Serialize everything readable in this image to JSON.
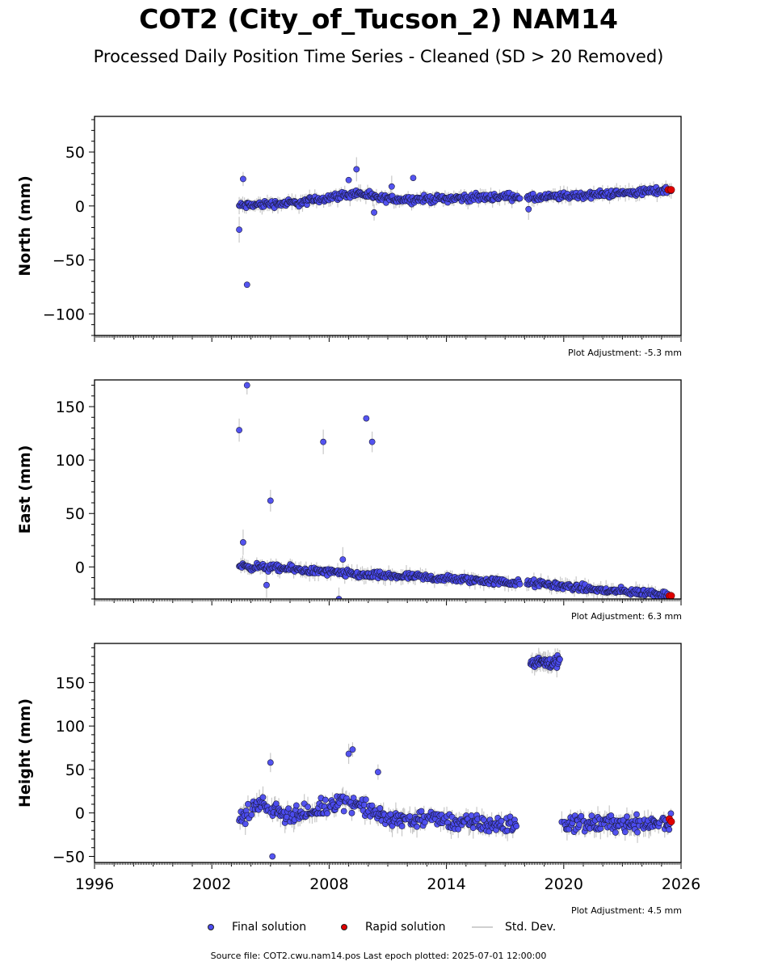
{
  "header": {
    "title": "COT2 (City_of_Tucson_2) NAM14",
    "subtitle": "Processed Daily Position Time Series - Cleaned (SD > 20 Removed)"
  },
  "chart_data": [
    {
      "type": "scatter",
      "ylabel": "North (mm)",
      "xlim": [
        1996,
        2026
      ],
      "ylim": [
        -120,
        83
      ],
      "yticks": [
        50,
        0,
        -50,
        -100
      ],
      "yticklabels": [
        "50",
        "0",
        "−50",
        "−100"
      ],
      "adjustment": "Plot Adjustment: -5.3 mm",
      "trend": [
        {
          "x": 2003.4,
          "y": 0
        },
        {
          "x": 2005.0,
          "y": 2
        },
        {
          "x": 2006.5,
          "y": 3
        },
        {
          "x": 2008.0,
          "y": 8
        },
        {
          "x": 2009.5,
          "y": 12
        },
        {
          "x": 2010.5,
          "y": 7
        },
        {
          "x": 2012.0,
          "y": 6
        },
        {
          "x": 2014.0,
          "y": 7
        },
        {
          "x": 2016.0,
          "y": 8
        },
        {
          "x": 2017.6,
          "y": 9
        },
        {
          "x": 2018.2,
          "y": 7
        },
        {
          "x": 2020.0,
          "y": 9
        },
        {
          "x": 2022.0,
          "y": 11
        },
        {
          "x": 2024.0,
          "y": 13
        },
        {
          "x": 2025.5,
          "y": 15
        }
      ],
      "gaps": [
        [
          2017.8,
          2018.1
        ]
      ],
      "outliers": [
        {
          "x": 2003.4,
          "y": -22
        },
        {
          "x": 2003.6,
          "y": 25
        },
        {
          "x": 2003.8,
          "y": -73
        },
        {
          "x": 2009.4,
          "y": 34
        },
        {
          "x": 2009.0,
          "y": 24
        },
        {
          "x": 2010.3,
          "y": -6
        },
        {
          "x": 2012.3,
          "y": 26
        },
        {
          "x": 2011.2,
          "y": 18
        },
        {
          "x": 2018.2,
          "y": -3
        }
      ],
      "rapid": [
        {
          "x": 2025.35,
          "y": 15
        },
        {
          "x": 2025.45,
          "y": 15
        },
        {
          "x": 2025.5,
          "y": 15
        }
      ],
      "spread": 5
    },
    {
      "type": "scatter",
      "ylabel": "East (mm)",
      "xlim": [
        1996,
        2026
      ],
      "ylim": [
        -30,
        175
      ],
      "yticks": [
        150,
        100,
        50,
        0
      ],
      "yticklabels": [
        "150",
        "100",
        "50",
        "0"
      ],
      "adjustment": "Plot Adjustment: 6.3 mm",
      "trend": [
        {
          "x": 2003.4,
          "y": 1
        },
        {
          "x": 2006.0,
          "y": -2
        },
        {
          "x": 2008.0,
          "y": -5
        },
        {
          "x": 2010.0,
          "y": -8
        },
        {
          "x": 2012.0,
          "y": -9
        },
        {
          "x": 2014.0,
          "y": -11
        },
        {
          "x": 2016.0,
          "y": -13
        },
        {
          "x": 2017.6,
          "y": -15
        },
        {
          "x": 2018.2,
          "y": -15
        },
        {
          "x": 2020.0,
          "y": -18
        },
        {
          "x": 2022.0,
          "y": -22
        },
        {
          "x": 2024.0,
          "y": -24
        },
        {
          "x": 2025.5,
          "y": -26
        }
      ],
      "gaps": [
        [
          2017.8,
          2018.1
        ]
      ],
      "outliers": [
        {
          "x": 2003.4,
          "y": 128
        },
        {
          "x": 2003.8,
          "y": 170
        },
        {
          "x": 2005.0,
          "y": 62
        },
        {
          "x": 2007.7,
          "y": 117
        },
        {
          "x": 2009.9,
          "y": 139
        },
        {
          "x": 2010.2,
          "y": 117
        },
        {
          "x": 2003.6,
          "y": 23
        },
        {
          "x": 2008.7,
          "y": 7
        },
        {
          "x": 2008.5,
          "y": -30
        },
        {
          "x": 2004.8,
          "y": -17
        }
      ],
      "rapid": [
        {
          "x": 2025.4,
          "y": -27
        },
        {
          "x": 2025.5,
          "y": -27
        }
      ],
      "spread": 5
    },
    {
      "type": "scatter",
      "ylabel": "Height (mm)",
      "xlim": [
        1996,
        2026
      ],
      "ylim": [
        -57,
        195
      ],
      "yticks": [
        150,
        100,
        50,
        0,
        -50
      ],
      "yticklabels": [
        "150",
        "100",
        "50",
        "0",
        "−50"
      ],
      "xticks": [
        1996,
        2002,
        2008,
        2014,
        2020,
        2026
      ],
      "xticklabels": [
        "1996",
        "2002",
        "2008",
        "2014",
        "2020",
        "2026"
      ],
      "adjustment": "Plot Adjustment: 4.5 mm",
      "trend": [
        {
          "x": 2003.4,
          "y": -5
        },
        {
          "x": 2004.5,
          "y": 10
        },
        {
          "x": 2005.5,
          "y": 0
        },
        {
          "x": 2007.0,
          "y": -2
        },
        {
          "x": 2008.5,
          "y": 15
        },
        {
          "x": 2009.5,
          "y": 10
        },
        {
          "x": 2011.0,
          "y": -8
        },
        {
          "x": 2013.0,
          "y": -6
        },
        {
          "x": 2015.0,
          "y": -12
        },
        {
          "x": 2017.6,
          "y": -15
        }
      ],
      "trend2": [
        {
          "x": 2019.9,
          "y": -12
        },
        {
          "x": 2022.0,
          "y": -12
        },
        {
          "x": 2024.0,
          "y": -12
        },
        {
          "x": 2025.5,
          "y": -10
        }
      ],
      "cluster": {
        "x0": 2018.3,
        "x1": 2019.8,
        "y": 173,
        "spread": 10
      },
      "outliers": [
        {
          "x": 2009.2,
          "y": 73
        },
        {
          "x": 2009.0,
          "y": 68
        },
        {
          "x": 2005.0,
          "y": 58
        },
        {
          "x": 2005.1,
          "y": -50
        },
        {
          "x": 2010.5,
          "y": 47
        }
      ],
      "rapid": [
        {
          "x": 2025.4,
          "y": -7
        },
        {
          "x": 2025.5,
          "y": -10
        }
      ],
      "spread": 14
    }
  ],
  "legend": {
    "final": "Final solution",
    "rapid": "Rapid solution",
    "std": "Std. Dev."
  },
  "colors": {
    "final": "#4b4bf0",
    "rapid": "#e00000",
    "std": "#c8c8c8",
    "edge": "#1a1a3a"
  },
  "footer": "Source file: COT2.cwu.nam14.pos  Last epoch plotted: 2025-07-01 12:00:00"
}
